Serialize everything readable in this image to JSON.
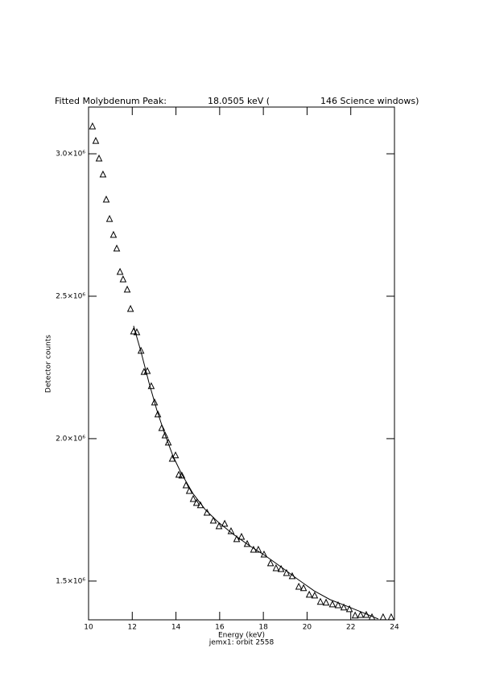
{
  "chart_data": {
    "type": "scatter",
    "title": [
      "Fitted Molybdenum Peak:",
      "18.0505 keV (",
      "146 Science windows)"
    ],
    "x_label": "Energy (keV)",
    "subtitle": "jemx1: orbit 2558",
    "y_label": "Detector counts",
    "xlim": [
      10,
      24
    ],
    "xticks": [
      10,
      12,
      14,
      16,
      18,
      20,
      22,
      24
    ],
    "ylim": [
      1364000,
      3164000
    ],
    "yticks": [
      {
        "value": 1500000,
        "label": "1.5×10⁶"
      },
      {
        "value": 2000000,
        "label": "2.0×10⁶"
      },
      {
        "value": 2500000,
        "label": "2.5×10⁶"
      },
      {
        "value": 3000000,
        "label": "3.0×10⁶"
      }
    ],
    "series": [
      {
        "style": "triangle",
        "color": "#000000",
        "x": [
          10.18,
          10.33,
          10.48,
          10.66,
          10.81,
          10.96,
          11.14,
          11.29,
          11.44,
          11.58,
          11.77,
          11.92,
          12.06,
          12.21,
          12.4,
          12.54,
          12.69,
          12.87,
          13.02,
          13.17,
          13.35,
          13.5,
          13.65,
          13.83,
          13.98,
          14.13,
          14.27,
          14.46,
          14.61,
          14.79,
          14.94,
          15.12,
          15.42,
          15.71,
          15.97,
          16.23,
          16.52,
          16.78,
          17.0,
          17.26,
          17.55,
          17.77,
          18.03,
          18.33,
          18.58,
          18.81,
          19.06,
          19.32,
          19.62,
          19.84,
          20.1,
          20.35,
          20.61,
          20.87,
          21.16,
          21.42,
          21.68,
          21.94,
          22.2,
          22.45,
          22.71,
          22.97,
          23.48,
          23.85
        ],
        "values": [
          3096000,
          3045000,
          2983000,
          2927000,
          2839000,
          2771000,
          2715000,
          2667000,
          2585000,
          2559000,
          2523000,
          2455000,
          2376000,
          2373000,
          2308000,
          2234000,
          2237000,
          2184000,
          2127000,
          2085000,
          2037000,
          2011000,
          1986000,
          1929000,
          1941000,
          1873000,
          1870000,
          1836000,
          1816000,
          1788000,
          1774000,
          1766000,
          1740000,
          1712000,
          1692000,
          1701000,
          1675000,
          1647000,
          1655000,
          1630000,
          1610000,
          1610000,
          1593000,
          1562000,
          1545000,
          1542000,
          1528000,
          1517000,
          1480000,
          1475000,
          1452000,
          1449000,
          1427000,
          1424000,
          1418000,
          1415000,
          1407000,
          1401000,
          1379000,
          1381000,
          1381000,
          1373000,
          1373000,
          1373000
        ]
      },
      {
        "style": "line",
        "color": "#000000",
        "x": [
          12.06,
          12.4,
          12.76,
          13.13,
          13.5,
          13.87,
          14.24,
          14.79,
          15.34,
          15.9,
          16.63,
          17.37,
          18.11,
          18.84,
          19.58,
          20.32,
          21.05,
          21.79,
          22.53,
          23.26
        ],
        "values": [
          2396000,
          2305000,
          2198000,
          2099000,
          2014000,
          1938000,
          1879000,
          1806000,
          1751000,
          1709000,
          1664000,
          1624000,
          1588000,
          1548000,
          1506000,
          1466000,
          1435000,
          1413000,
          1390000,
          1367000
        ]
      }
    ]
  }
}
